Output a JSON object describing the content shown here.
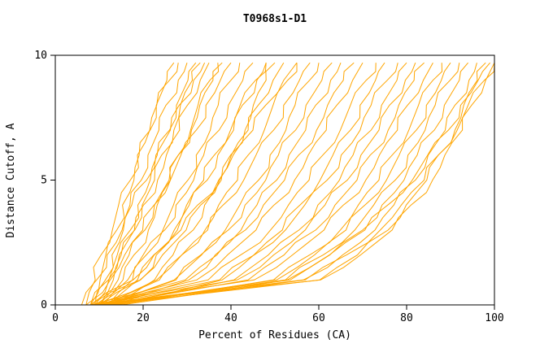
{
  "window": {
    "title": "T0968s1-D1"
  },
  "chart_data": {
    "type": "line",
    "title": "T0968s1-D1",
    "xlabel": "Percent of Residues (CA)",
    "ylabel": "Distance Cutoff, A",
    "xlim": [
      0,
      100
    ],
    "ylim": [
      0,
      10
    ],
    "x_ticks": [
      0,
      20,
      40,
      60,
      80,
      100
    ],
    "y_ticks": [
      0,
      5,
      10
    ],
    "grid": false,
    "legend": "none",
    "line_color": "#FFA500",
    "frame_color": "#000000",
    "text_color": "#000000",
    "y_levels": [
      0,
      1,
      2,
      3,
      4,
      5,
      6,
      7,
      8,
      9,
      9.7
    ],
    "curves": [
      [
        8,
        10.2,
        11.5,
        14.0,
        15.3,
        17.9,
        19.1,
        21.6,
        23.0,
        25.4,
        27
      ],
      [
        9,
        11.4,
        12.9,
        15.5,
        17.0,
        19.6,
        21.1,
        23.6,
        25.2,
        28.0,
        30
      ],
      [
        10,
        13.2,
        15.0,
        18.1,
        19.8,
        22.6,
        24.2,
        27.0,
        28.5,
        31.2,
        33
      ],
      [
        8,
        12.1,
        14.6,
        18.0,
        20.1,
        23.3,
        25.3,
        28.3,
        30.1,
        33.0,
        35
      ],
      [
        11,
        15.4,
        17.9,
        21.2,
        23.2,
        26.2,
        28.0,
        30.8,
        32.5,
        35.2,
        37
      ],
      [
        7,
        12.5,
        15.8,
        19.9,
        22.5,
        26.2,
        28.6,
        32.1,
        34.3,
        37.6,
        40
      ],
      [
        12,
        17.6,
        20.7,
        24.5,
        26.9,
        30.2,
        32.1,
        35.3,
        37.1,
        40.0,
        42
      ],
      [
        9,
        16.5,
        20.0,
        24.9,
        27.5,
        31.5,
        33.8,
        37.3,
        39.4,
        42.7,
        45
      ],
      [
        10,
        19.4,
        23.0,
        27.8,
        30.5,
        34.6,
        37.0,
        40.6,
        42.6,
        45.9,
        48
      ],
      [
        13,
        22.6,
        26.8,
        31.4,
        34.0,
        37.8,
        39.9,
        43.2,
        45.1,
        48.0,
        50
      ],
      [
        8,
        19.3,
        24.4,
        29.8,
        33.1,
        37.4,
        40.1,
        43.9,
        46.2,
        49.6,
        52
      ],
      [
        11,
        23.7,
        28.8,
        34.1,
        37.2,
        41.5,
        43.9,
        47.6,
        49.6,
        52.9,
        55
      ],
      [
        9,
        23.1,
        28.8,
        34.7,
        38.2,
        42.9,
        45.7,
        49.7,
        52.0,
        55.6,
        58
      ],
      [
        12,
        27.5,
        33.1,
        38.7,
        42.0,
        46.3,
        48.9,
        52.5,
        54.6,
        57.9,
        60
      ],
      [
        10,
        27.1,
        33.3,
        39.4,
        43.2,
        47.9,
        50.8,
        54.7,
        57.1,
        60.7,
        63
      ],
      [
        14,
        30.4,
        36.4,
        42.3,
        45.9,
        50.4,
        53.2,
        57.0,
        59.3,
        62.7,
        65
      ],
      [
        8,
        29.6,
        36.8,
        43.3,
        47.4,
        52.2,
        55.4,
        59.5,
        62.0,
        65.6,
        68
      ],
      [
        11,
        32.2,
        39.2,
        45.7,
        49.8,
        54.5,
        57.6,
        61.7,
        64.1,
        67.7,
        70
      ],
      [
        9,
        34.8,
        42.2,
        49.0,
        53.1,
        57.8,
        60.9,
        64.9,
        67.2,
        70.8,
        73
      ],
      [
        13,
        38.0,
        45.2,
        51.7,
        55.7,
        60.3,
        63.2,
        67.2,
        69.4,
        72.9,
        75
      ],
      [
        10,
        37.4,
        45.3,
        52.4,
        56.8,
        61.9,
        65.1,
        69.4,
        71.9,
        75.6,
        78
      ],
      [
        12,
        40.7,
        48.5,
        55.5,
        59.8,
        64.7,
        67.8,
        71.9,
        74.3,
        77.8,
        80
      ],
      [
        8,
        41.4,
        49.7,
        56.9,
        61.4,
        66.5,
        69.6,
        73.7,
        76.1,
        79.7,
        82
      ],
      [
        11,
        43.9,
        52.1,
        59.3,
        63.7,
        68.7,
        71.7,
        75.8,
        78.2,
        81.7,
        84
      ],
      [
        9,
        45.3,
        54.0,
        61.2,
        65.6,
        70.7,
        73.8,
        77.9,
        80.2,
        83.8,
        86
      ],
      [
        14,
        49.7,
        57.9,
        64.9,
        69.0,
        73.7,
        76.7,
        80.5,
        82.7,
        86.0,
        88
      ],
      [
        10,
        50.4,
        59.0,
        66.2,
        70.5,
        75.4,
        78.3,
        82.2,
        84.5,
        87.9,
        90
      ],
      [
        12,
        52.4,
        61.0,
        68.2,
        72.5,
        77.4,
        80.3,
        84.2,
        86.5,
        89.9,
        92
      ],
      [
        8,
        53.5,
        62.5,
        70.0,
        74.4,
        79.4,
        82.4,
        86.3,
        88.6,
        92.0,
        94
      ],
      [
        10,
        56.5,
        65.4,
        72.8,
        77.1,
        82.0,
        84.9,
        88.8,
        91.0,
        94.2,
        96
      ],
      [
        11,
        60.2,
        68.8,
        75.8,
        79.9,
        84.6,
        87.2,
        91.0,
        93.0,
        96.1,
        98
      ],
      [
        9,
        60.4,
        69.5,
        76.7,
        81.0,
        85.9,
        88.7,
        92.7,
        94.8,
        98.0,
        100
      ],
      [
        13,
        56.9,
        66.3,
        74.0,
        78.8,
        84.0,
        87.2,
        91.5,
        94.0,
        97.7,
        100
      ],
      [
        15,
        52.8,
        62.4,
        70.5,
        75.7,
        81.3,
        84.8,
        89.5,
        92.3,
        96.3,
        99
      ],
      [
        7,
        9.1,
        10.4,
        13.0,
        14.4,
        17.1,
        18.7,
        21.5,
        23.1,
        26.0,
        28
      ],
      [
        9,
        12.2,
        14.1,
        17.1,
        18.8,
        21.6,
        23.2,
        26.0,
        27.6,
        30.2,
        32
      ],
      [
        6,
        9.4,
        11.8,
        15.2,
        17.4,
        20.8,
        22.9,
        26.2,
        28.2,
        31.5,
        34
      ],
      [
        10,
        14.3,
        16.8,
        20.4,
        22.6,
        25.9,
        28.0,
        31.0,
        32.9,
        35.9,
        38
      ],
      [
        8,
        17.7,
        22.5,
        28.6,
        32.4,
        37.2,
        40.5,
        45.0,
        47.9,
        52.0,
        55
      ],
      [
        12,
        18.7,
        22.4,
        27.1,
        29.9,
        33.8,
        36.2,
        39.9,
        42.1,
        45.6,
        48
      ]
    ]
  }
}
